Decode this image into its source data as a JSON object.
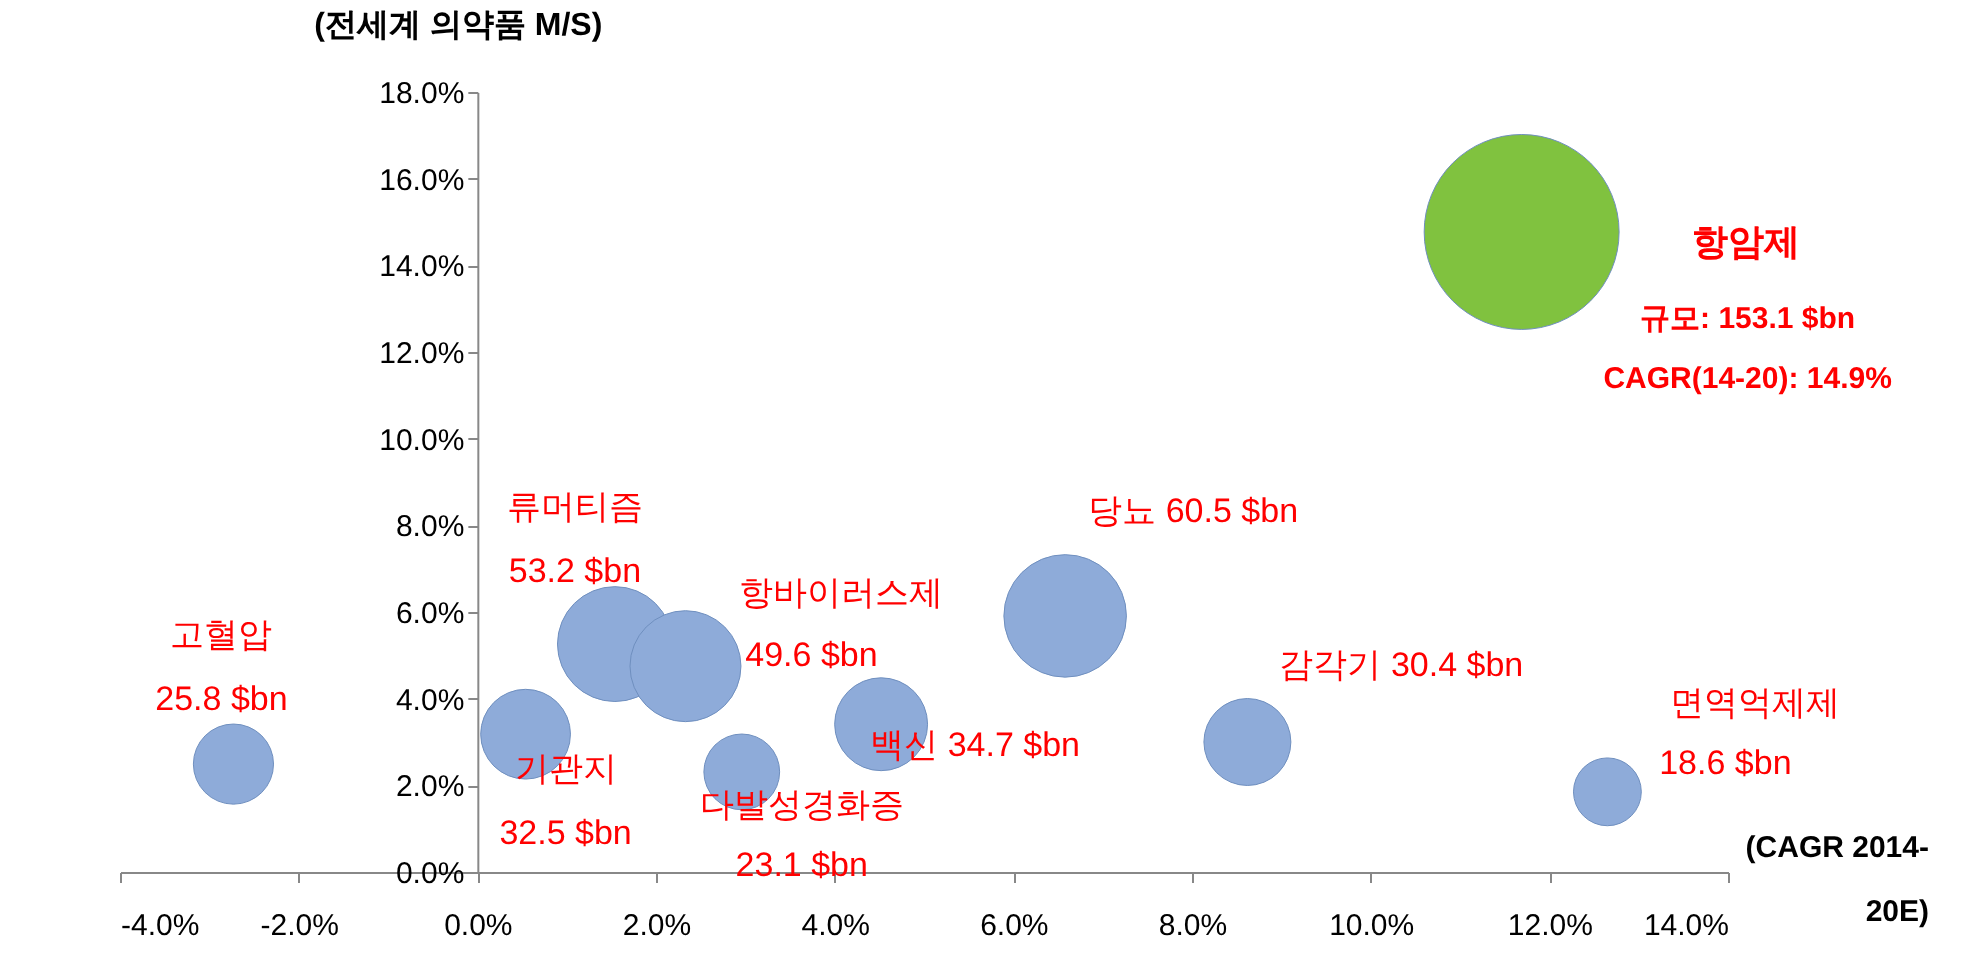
{
  "chart_data": {
    "type": "bubble",
    "xlabel": "(CAGR 2014-20E)",
    "ylabel": "(전세계 의약품 M/S)",
    "xlim": [
      -4,
      14
    ],
    "ylim": [
      0,
      18
    ],
    "xticks": [
      {
        "value": -4,
        "label": "-4.0%"
      },
      {
        "value": -2,
        "label": "-2.0%"
      },
      {
        "value": 0,
        "label": "0.0%"
      },
      {
        "value": 2,
        "label": "2.0%"
      },
      {
        "value": 4,
        "label": "4.0%"
      },
      {
        "value": 6,
        "label": "6.0%"
      },
      {
        "value": 8,
        "label": "8.0%"
      },
      {
        "value": 10,
        "label": "10.0%"
      },
      {
        "value": 12,
        "label": "12.0%"
      },
      {
        "value": 14,
        "label": "14.0%"
      }
    ],
    "yticks": [
      {
        "value": 0,
        "label": "0.0%"
      },
      {
        "value": 2,
        "label": "2.0%"
      },
      {
        "value": 4,
        "label": "4.0%"
      },
      {
        "value": 6,
        "label": "6.0%"
      },
      {
        "value": 8,
        "label": "8.0%"
      },
      {
        "value": 10,
        "label": "10.0%"
      },
      {
        "value": 12,
        "label": "12.0%"
      },
      {
        "value": 14,
        "label": "14.0%"
      },
      {
        "value": 16,
        "label": "16.0%"
      },
      {
        "value": 18,
        "label": "18.0%"
      }
    ],
    "grid": false,
    "legend": false,
    "series": [
      {
        "x": [
          -2.73,
          0.54,
          1.54,
          2.33,
          2.96,
          4.52,
          6.58,
          8.62,
          12.65,
          11.69
        ],
        "values": [
          2.49,
          3.18,
          5.26,
          4.75,
          2.31,
          3.41,
          5.91,
          3.0,
          1.85,
          14.77
        ],
        "sizes": [
          0.169,
          0.212,
          0.347,
          0.324,
          0.151,
          0.227,
          0.395,
          0.199,
          0.121,
          1
        ],
        "colors": [
          "#8eabd9",
          "#8eabd9",
          "#8eabd9",
          "#8eabd9",
          "#8eabd9",
          "#8eabd9",
          "#8eabd9",
          "#8eabd9",
          "#8eabd9",
          "#80c23f"
        ]
      }
    ],
    "annotations": [
      "고혈압",
      "25.8 $bn",
      "류머티즘",
      "53.2 $bn",
      "항바이러스제",
      "49.6 $bn",
      "기관지",
      "32.5 $bn",
      "다발성경화증",
      "23.1 $bn",
      "백신 34.7 $bn",
      "당뇨 60.5 $bn",
      "감각기 30.4 $bn",
      "면역억제제",
      "18.6 $bn",
      "항암제",
      "규모: 153.1 $bn",
      "CAGR(14-20): 14.9%"
    ]
  }
}
